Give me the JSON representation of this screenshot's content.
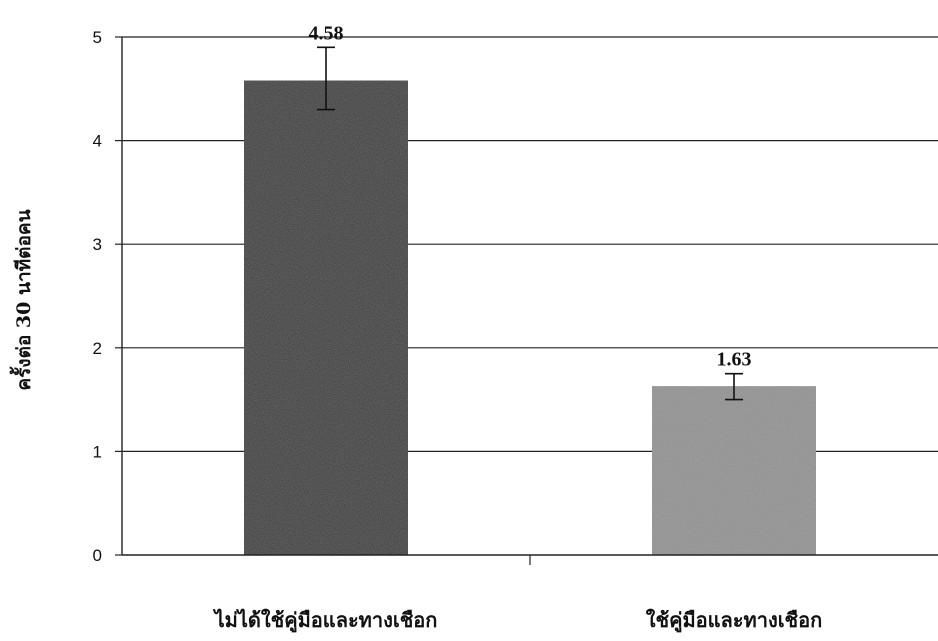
{
  "chart_data": {
    "type": "bar",
    "categories": [
      "ไม่ได้ใช้คู่มือและทางเชือก",
      "ใช้คู่มือและทางเชือก"
    ],
    "values": [
      4.58,
      1.63
    ],
    "error_upper": [
      4.9,
      1.75
    ],
    "error_lower": [
      4.3,
      1.5
    ],
    "data_labels": [
      "4.58",
      "1.63"
    ],
    "bar_colors": [
      "#141414",
      "#8f8f8f"
    ],
    "ylabel": "ครั้งต่อ 30 นาทีต่อคน",
    "xlabel": "",
    "ylim": [
      0,
      5
    ],
    "yticks": [
      "0",
      "1",
      "2",
      "3",
      "4",
      "5"
    ],
    "grid": "horizontal",
    "legend": "none"
  }
}
